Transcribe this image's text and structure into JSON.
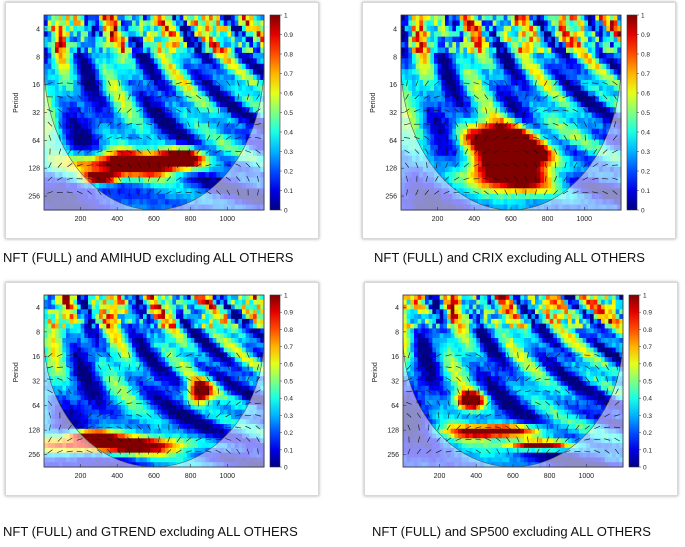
{
  "charts": [
    {
      "caption": "NFT (FULL) and AMIHUD excluding ALL OTHERS",
      "seed": 11,
      "hot": [
        [
          0.36,
          0.75,
          0.28,
          0.06
        ],
        [
          0.62,
          0.72,
          0.1,
          0.05
        ],
        [
          0.25,
          0.82,
          0.08,
          0.03
        ]
      ]
    },
    {
      "caption": "NFT (FULL) and CRIX excluding ALL OTHERS",
      "seed": 23,
      "hot": [
        [
          0.45,
          0.62,
          0.18,
          0.08
        ],
        [
          0.48,
          0.8,
          0.22,
          0.1
        ],
        [
          0.55,
          0.7,
          0.12,
          0.06
        ]
      ]
    },
    {
      "caption": "NFT (FULL) and GTREND excluding ALL OTHERS",
      "seed": 37,
      "hot": [
        [
          0.3,
          0.86,
          0.35,
          0.05
        ],
        [
          0.2,
          0.8,
          0.1,
          0.03
        ],
        [
          0.7,
          0.55,
          0.05,
          0.06
        ]
      ]
    },
    {
      "caption": "NFT (FULL) and SP500 excluding ALL OTHERS",
      "seed": 53,
      "hot": [
        [
          0.42,
          0.78,
          0.2,
          0.04
        ],
        [
          0.6,
          0.86,
          0.15,
          0.03
        ],
        [
          0.3,
          0.6,
          0.06,
          0.05
        ]
      ]
    }
  ],
  "chart_data": [
    {
      "type": "heatmap",
      "title": "NFT (FULL) and AMIHUD excluding ALL OTHERS",
      "xlabel": "",
      "ylabel": "Period",
      "x_ticks": [
        "200",
        "400",
        "600",
        "800",
        "1000"
      ],
      "y_ticks": [
        "4",
        "8",
        "16",
        "32",
        "64",
        "128",
        "256"
      ],
      "colorbar_ticks": [
        "0",
        "0.1",
        "0.2",
        "0.3",
        "0.4",
        "0.5",
        "0.6",
        "0.7",
        "0.8",
        "0.9",
        "1"
      ],
      "zlim": [
        0,
        1
      ],
      "xlim": [
        1,
        1200
      ]
    },
    {
      "type": "heatmap",
      "title": "NFT (FULL) and CRIX excluding ALL OTHERS",
      "xlabel": "",
      "ylabel": "Period",
      "x_ticks": [
        "200",
        "400",
        "600",
        "800",
        "1000"
      ],
      "y_ticks": [
        "4",
        "8",
        "16",
        "32",
        "64",
        "128",
        "256"
      ],
      "colorbar_ticks": [
        "0",
        "0.1",
        "0.2",
        "0.3",
        "0.4",
        "0.5",
        "0.6",
        "0.7",
        "0.8",
        "0.9",
        "1"
      ],
      "zlim": [
        0,
        1
      ],
      "xlim": [
        1,
        1200
      ]
    },
    {
      "type": "heatmap",
      "title": "NFT (FULL) and GTREND excluding ALL OTHERS",
      "xlabel": "",
      "ylabel": "Period",
      "x_ticks": [
        "200",
        "400",
        "600",
        "800",
        "1000"
      ],
      "y_ticks": [
        "4",
        "8",
        "16",
        "32",
        "64",
        "128",
        "256"
      ],
      "colorbar_ticks": [
        "0",
        "0.1",
        "0.2",
        "0.3",
        "0.4",
        "0.5",
        "0.6",
        "0.7",
        "0.8",
        "0.9",
        "1"
      ],
      "zlim": [
        0,
        1
      ],
      "xlim": [
        1,
        1200
      ]
    },
    {
      "type": "heatmap",
      "title": "NFT (FULL) and SP500 excluding ALL OTHERS",
      "xlabel": "",
      "ylabel": "Period",
      "x_ticks": [
        "200",
        "400",
        "600",
        "800",
        "1000"
      ],
      "y_ticks": [
        "4",
        "8",
        "16",
        "32",
        "64",
        "128",
        "256"
      ],
      "colorbar_ticks": [
        "0",
        "0.1",
        "0.2",
        "0.3",
        "0.4",
        "0.5",
        "0.6",
        "0.7",
        "0.8",
        "0.9",
        "1"
      ],
      "zlim": [
        0,
        1
      ],
      "xlim": [
        1,
        1200
      ]
    }
  ]
}
